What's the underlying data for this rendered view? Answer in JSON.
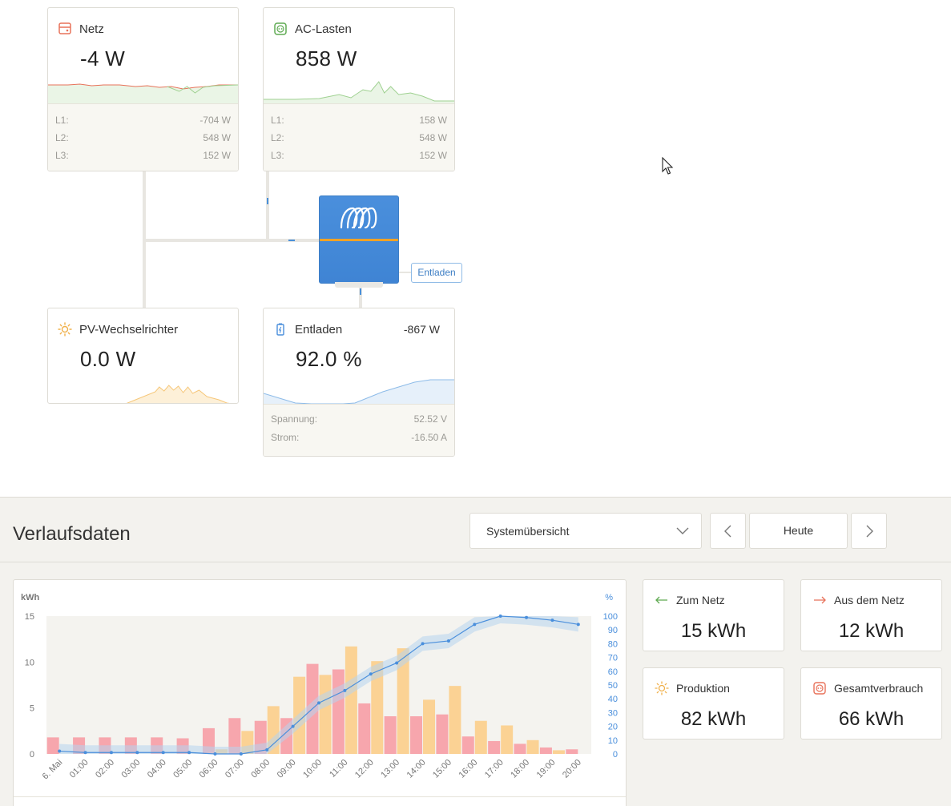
{
  "tiles": {
    "grid": {
      "title": "Netz",
      "value": "-4 W",
      "phases": [
        {
          "label": "L1:",
          "value": "-704 W"
        },
        {
          "label": "L2:",
          "value": "548 W"
        },
        {
          "label": "L3:",
          "value": "152 W"
        }
      ],
      "color": "#e8725a"
    },
    "ac_loads": {
      "title": "AC-Lasten",
      "value": "858 W",
      "phases": [
        {
          "label": "L1:",
          "value": "158 W"
        },
        {
          "label": "L2:",
          "value": "548 W"
        },
        {
          "label": "L3:",
          "value": "152 W"
        }
      ],
      "color": "#5faa52"
    },
    "pv_inverter": {
      "title": "PV-Wechselrichter",
      "value": "0.0 W",
      "color": "#f0b04a"
    },
    "battery": {
      "title": "Entladen",
      "power": "-867 W",
      "value": "92.0 %",
      "rows": [
        {
          "label": "Spannung:",
          "value": "52.52 V"
        },
        {
          "label": "Strom:",
          "value": "-16.50 A"
        }
      ],
      "color": "#4a8fdc"
    }
  },
  "inverter": {
    "state_label": "Entladen",
    "accent": "#3f84d4",
    "stripe": "#f0a227"
  },
  "history": {
    "title": "Verlaufsdaten",
    "selector_value": "Systemübersicht",
    "period_label": "Heute",
    "stats": [
      {
        "label": "Zum Netz",
        "value": "15 kWh",
        "icon": "arrow-left-icon",
        "color": "#5faa52"
      },
      {
        "label": "Aus dem Netz",
        "value": "12 kWh",
        "icon": "arrow-right-icon",
        "color": "#e8725a"
      },
      {
        "label": "Produktion",
        "value": "82 kWh",
        "icon": "sun-icon",
        "color": "#f0b04a"
      },
      {
        "label": "Gesamtverbrauch",
        "value": "66 kWh",
        "icon": "socket-icon",
        "color": "#e8725a"
      }
    ]
  },
  "chart_data": {
    "type": "bar",
    "y_left_label": "kWh",
    "y_right_label": "%",
    "y_left_ticks": [
      0,
      5,
      10,
      15
    ],
    "y_right_ticks": [
      0,
      10,
      20,
      30,
      40,
      50,
      60,
      70,
      80,
      90,
      100
    ],
    "ylim": [
      0,
      15
    ],
    "y2lim": [
      0,
      100
    ],
    "categories": [
      "6. Mai",
      "01:00",
      "02:00",
      "03:00",
      "04:00",
      "05:00",
      "06:00",
      "07:00",
      "08:00",
      "09:00",
      "10:00",
      "11:00",
      "12:00",
      "13:00",
      "14:00",
      "15:00",
      "16:00",
      "17:00",
      "18:00",
      "19:00",
      "20:00"
    ],
    "series": [
      {
        "color": "#f7a6ad",
        "values": [
          1.8,
          1.8,
          1.8,
          1.8,
          1.8,
          1.7,
          2.8,
          3.9,
          3.6,
          3.9,
          9.8,
          9.2,
          5.5,
          4.1,
          4.1,
          4.3,
          1.9,
          1.4,
          1.1,
          0.7,
          0.5
        ]
      },
      {
        "color": "#fbd294",
        "values": [
          0,
          0,
          0,
          0,
          0,
          0,
          0.5,
          2.5,
          5.2,
          8.4,
          8.6,
          11.7,
          10.1,
          11.5,
          5.9,
          7.4,
          3.6,
          3.1,
          1.5,
          0.4,
          0
        ]
      },
      {
        "color": "#4a8fdc",
        "axis": "right",
        "kind": "line",
        "values": [
          2,
          1,
          1,
          1,
          1,
          1,
          0,
          0,
          3,
          20,
          37,
          46,
          58,
          66,
          80,
          82,
          94,
          100,
          99,
          97,
          94
        ]
      }
    ]
  }
}
